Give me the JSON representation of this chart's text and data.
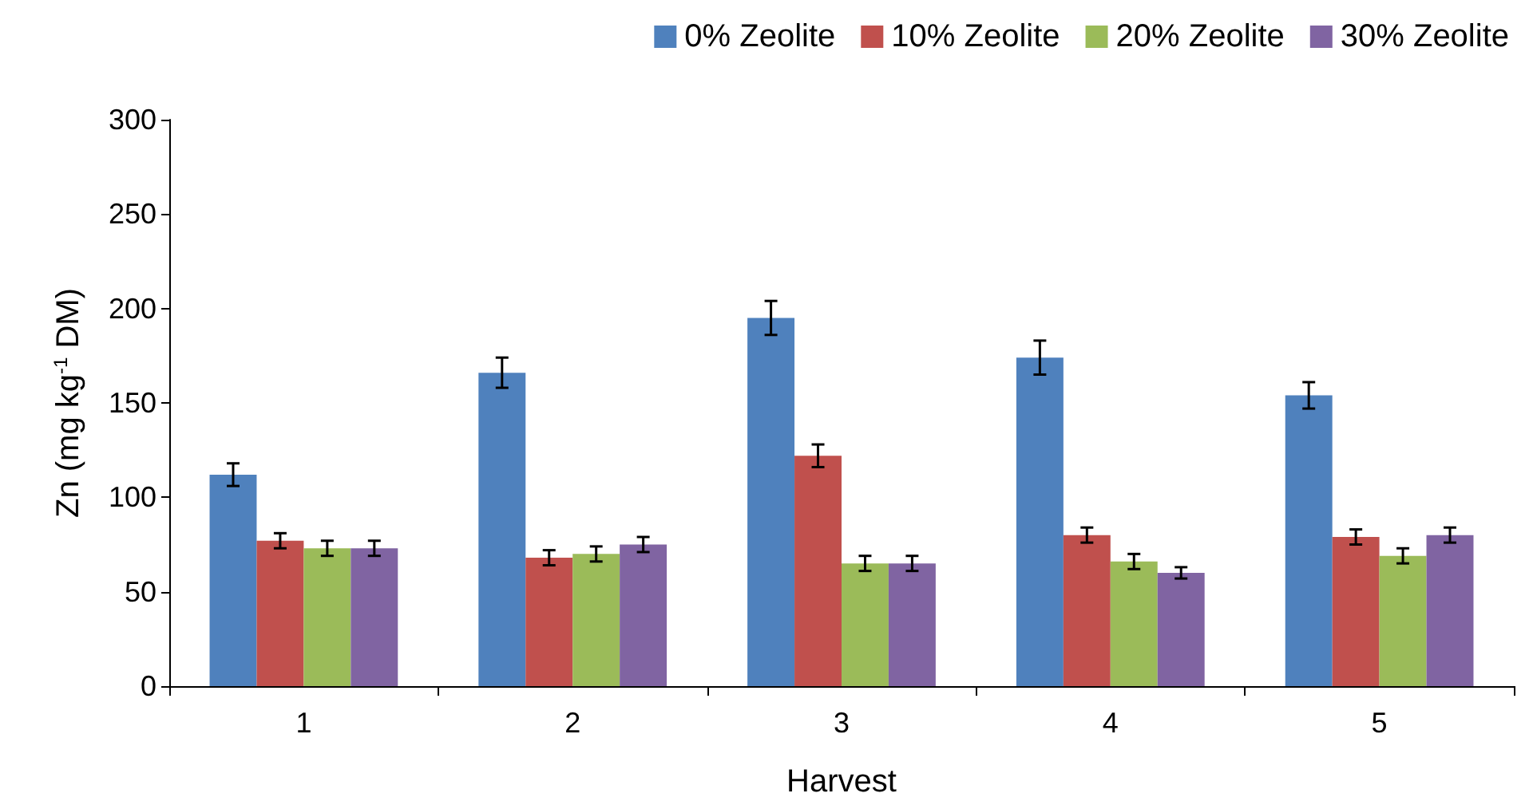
{
  "chart_data": {
    "type": "bar",
    "xlabel": "Harvest",
    "ylabel": "Zn (mg kg$^{-1}$ DM)",
    "categories": [
      "1",
      "2",
      "3",
      "4",
      "5"
    ],
    "series": [
      {
        "name": "0% Zeolite",
        "color": "#4f81bd",
        "values": [
          112,
          166,
          195,
          174,
          154
        ],
        "errors": [
          6,
          8,
          9,
          9,
          7
        ]
      },
      {
        "name": "10% Zeolite",
        "color": "#c0504d",
        "values": [
          77,
          68,
          122,
          80,
          79
        ],
        "errors": [
          4,
          4,
          6,
          4,
          4
        ]
      },
      {
        "name": "20% Zeolite",
        "color": "#9bbb59",
        "values": [
          73,
          70,
          65,
          66,
          69
        ],
        "errors": [
          4,
          4,
          4,
          4,
          4
        ]
      },
      {
        "name": "30% Zeolite",
        "color": "#8064a2",
        "values": [
          73,
          75,
          65,
          60,
          80
        ],
        "errors": [
          4,
          4,
          4,
          3,
          4
        ]
      }
    ],
    "ylim": [
      0,
      300
    ],
    "yticks": [
      0,
      50,
      100,
      150,
      200,
      250,
      300
    ],
    "grid": false,
    "legend": "top right"
  }
}
